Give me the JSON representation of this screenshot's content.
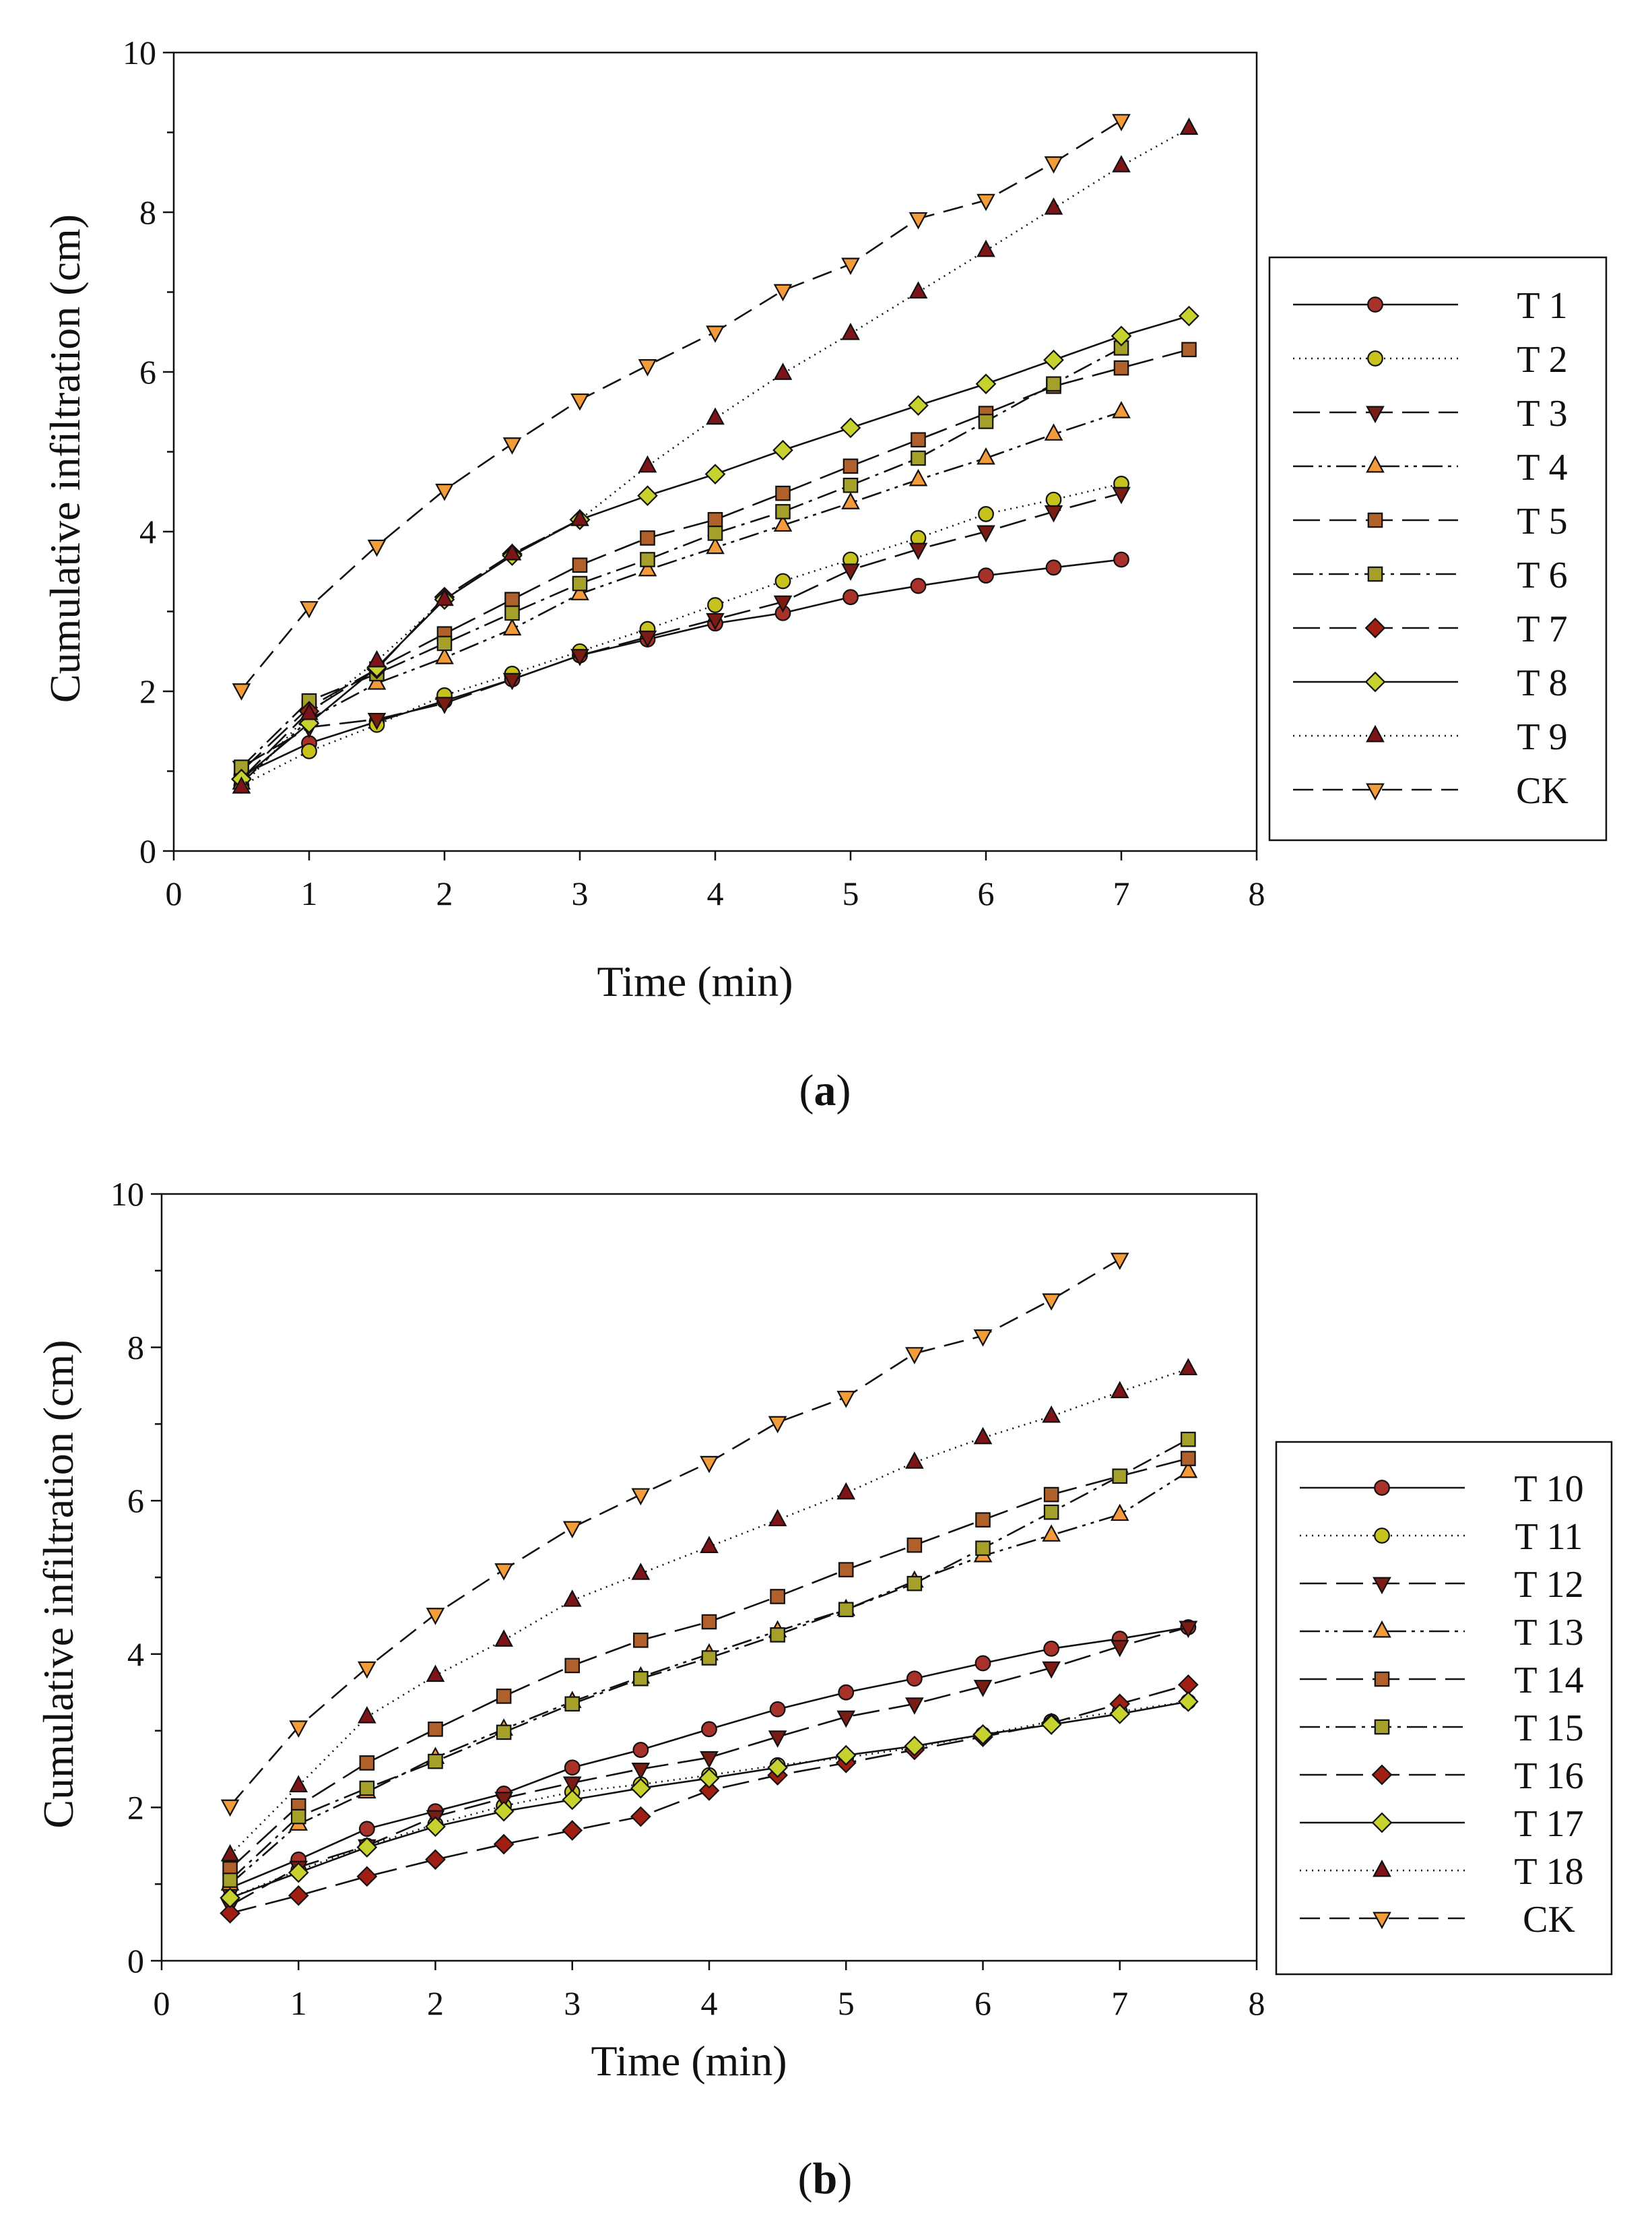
{
  "figure": {
    "panel_labels": [
      "(a)",
      "(b)"
    ]
  },
  "chart_data": [
    {
      "type": "line",
      "panel": "(a)",
      "title": "",
      "xlabel": "Time (min)",
      "ylabel": "Cumulative infiltration (cm)",
      "xlim": [
        0,
        8
      ],
      "ylim": [
        0,
        10
      ],
      "xticks": [
        "0",
        "1",
        "2",
        "3",
        "4",
        "5",
        "6",
        "7",
        "8"
      ],
      "yticks": [
        "0",
        "2",
        "4",
        "6",
        "8",
        "10"
      ],
      "grid": false,
      "legend_position": "right",
      "series": [
        {
          "name": "T 1",
          "marker": "circle",
          "dash": "solid",
          "fill": "#a8312a",
          "x": [
            0.5,
            1,
            1.5,
            2,
            2.5,
            3,
            3.5,
            4,
            4.5,
            5,
            5.5,
            6,
            6.5,
            7
          ],
          "y": [
            0.95,
            1.35,
            1.62,
            1.88,
            2.15,
            2.45,
            2.65,
            2.85,
            2.98,
            3.18,
            3.32,
            3.45,
            3.55,
            3.65
          ]
        },
        {
          "name": "T 2",
          "marker": "circle",
          "dash": "dot",
          "fill": "#c8c21c",
          "x": [
            0.5,
            1,
            1.5,
            2,
            2.5,
            3,
            3.5,
            4,
            4.5,
            5,
            5.5,
            6,
            6.5,
            7
          ],
          "y": [
            0.82,
            1.25,
            1.58,
            1.95,
            2.22,
            2.5,
            2.78,
            3.08,
            3.38,
            3.65,
            3.92,
            4.22,
            4.4,
            4.6
          ]
        },
        {
          "name": "T 3",
          "marker": "triangle-down",
          "dash": "longdash",
          "fill": "#7a1c14",
          "x": [
            0.5,
            1,
            1.5,
            2,
            2.5,
            3,
            3.5,
            4,
            4.5,
            5,
            5.5,
            6,
            6.5,
            7
          ],
          "y": [
            1.05,
            1.55,
            1.65,
            1.85,
            2.15,
            2.45,
            2.68,
            2.9,
            3.12,
            3.52,
            3.78,
            4.0,
            4.25,
            4.48
          ]
        },
        {
          "name": "T 4",
          "marker": "triangle-up",
          "dash": "dashdotdot",
          "fill": "#f29a3c",
          "x": [
            0.5,
            1,
            1.5,
            2,
            2.5,
            3,
            3.5,
            4,
            4.5,
            5,
            5.5,
            6,
            6.5,
            7
          ],
          "y": [
            0.85,
            1.65,
            2.1,
            2.42,
            2.78,
            3.22,
            3.52,
            3.8,
            4.08,
            4.36,
            4.65,
            4.92,
            5.22,
            5.5
          ]
        },
        {
          "name": "T 5",
          "marker": "square",
          "dash": "longdash",
          "fill": "#b0602a",
          "x": [
            0.5,
            1,
            1.5,
            2,
            2.5,
            3,
            3.5,
            4,
            4.5,
            5,
            5.5,
            6,
            6.5,
            7,
            7.5
          ],
          "y": [
            1.0,
            1.8,
            2.28,
            2.72,
            3.15,
            3.58,
            3.92,
            4.15,
            4.48,
            4.82,
            5.15,
            5.48,
            5.82,
            6.05,
            6.28
          ]
        },
        {
          "name": "T 6",
          "marker": "square",
          "dash": "dashdot",
          "fill": "#a4a02a",
          "x": [
            0.5,
            1,
            1.5,
            2,
            2.5,
            3,
            3.5,
            4,
            4.5,
            5,
            5.5,
            6,
            6.5,
            7
          ],
          "y": [
            1.05,
            1.88,
            2.22,
            2.6,
            2.98,
            3.35,
            3.65,
            3.98,
            4.25,
            4.58,
            4.92,
            5.38,
            5.85,
            6.3
          ]
        },
        {
          "name": "T 7",
          "marker": "diamond",
          "dash": "longdash",
          "fill": "#a01e12",
          "x": [
            0.5,
            1,
            1.5,
            2,
            2.5,
            3
          ],
          "y": [
            0.9,
            1.75,
            2.28,
            3.18,
            3.72,
            4.15
          ]
        },
        {
          "name": "T 8",
          "marker": "diamond",
          "dash": "solid",
          "fill": "#c8d22e",
          "x": [
            0.5,
            1,
            1.5,
            2,
            2.5,
            3,
            3.5,
            4,
            4.5,
            5,
            5.5,
            6,
            6.5,
            7,
            7.5
          ],
          "y": [
            0.9,
            1.6,
            2.3,
            3.15,
            3.7,
            4.15,
            4.45,
            4.72,
            5.02,
            5.3,
            5.58,
            5.85,
            6.15,
            6.45,
            6.7
          ]
        },
        {
          "name": "T 9",
          "marker": "triangle-up",
          "dash": "dot",
          "fill": "#7c1418",
          "x": [
            0.5,
            1,
            1.5,
            2,
            2.5,
            3,
            3.5,
            4,
            4.5,
            5,
            5.5,
            6,
            6.5,
            7,
            7.5
          ],
          "y": [
            0.8,
            1.72,
            2.38,
            3.15,
            3.72,
            4.15,
            4.82,
            5.42,
            5.98,
            6.48,
            7.0,
            7.52,
            8.05,
            8.58,
            9.05
          ]
        },
        {
          "name": "CK",
          "marker": "triangle-down",
          "dash": "dash",
          "fill": "#f39c3a",
          "x": [
            0.5,
            1,
            1.5,
            2,
            2.5,
            3,
            3.5,
            4,
            4.5,
            5,
            5.5,
            6,
            6.5,
            7
          ],
          "y": [
            2.02,
            3.05,
            3.82,
            4.52,
            5.1,
            5.65,
            6.08,
            6.5,
            7.02,
            7.35,
            7.92,
            8.15,
            8.62,
            9.15
          ]
        }
      ]
    },
    {
      "type": "line",
      "panel": "(b)",
      "title": "",
      "xlabel": "Time (min)",
      "ylabel": "Cumulative infiltration (cm)",
      "xlim": [
        0,
        8
      ],
      "ylim": [
        0,
        10
      ],
      "xticks": [
        "0",
        "1",
        "2",
        "3",
        "4",
        "5",
        "6",
        "7",
        "8"
      ],
      "yticks": [
        "0",
        "2",
        "4",
        "6",
        "8",
        "10"
      ],
      "grid": false,
      "legend_position": "right",
      "series": [
        {
          "name": "T 10",
          "marker": "circle",
          "dash": "solid",
          "fill": "#a8312a",
          "x": [
            0.5,
            1,
            1.5,
            2,
            2.5,
            3,
            3.5,
            4,
            4.5,
            5,
            5.5,
            6,
            6.5,
            7,
            7.5
          ],
          "y": [
            0.95,
            1.32,
            1.72,
            1.95,
            2.18,
            2.52,
            2.75,
            3.02,
            3.28,
            3.5,
            3.68,
            3.88,
            4.07,
            4.2,
            4.35
          ]
        },
        {
          "name": "T 11",
          "marker": "circle",
          "dash": "dot",
          "fill": "#c8c21c",
          "x": [
            0.5,
            1,
            1.5,
            2,
            2.5,
            3,
            3.5,
            4,
            4.5,
            5,
            5.5,
            6,
            6.5,
            7,
            7.5
          ],
          "y": [
            0.82,
            1.18,
            1.5,
            1.78,
            2.02,
            2.2,
            2.3,
            2.42,
            2.55,
            2.65,
            2.78,
            2.95,
            3.12,
            3.25,
            3.38
          ]
        },
        {
          "name": "T 12",
          "marker": "triangle-down",
          "dash": "longdash",
          "fill": "#7a1c14",
          "x": [
            0.5,
            1,
            1.5,
            2,
            2.5,
            3,
            3.5,
            4,
            4.5,
            5,
            5.5,
            6,
            6.5,
            7,
            7.5
          ],
          "y": [
            0.72,
            1.22,
            1.5,
            1.88,
            2.12,
            2.32,
            2.5,
            2.65,
            2.92,
            3.18,
            3.35,
            3.58,
            3.82,
            4.1,
            4.35
          ]
        },
        {
          "name": "T 13",
          "marker": "triangle-up",
          "dash": "dashdotdot",
          "fill": "#f29a3c",
          "x": [
            0.5,
            1,
            1.5,
            2,
            2.5,
            3,
            3.5,
            4,
            4.5,
            5,
            5.5,
            6,
            6.5,
            7,
            7.5
          ],
          "y": [
            1.0,
            1.78,
            2.2,
            2.65,
            3.02,
            3.38,
            3.7,
            4.0,
            4.3,
            4.58,
            4.95,
            5.28,
            5.55,
            5.82,
            6.38
          ]
        },
        {
          "name": "T 14",
          "marker": "square",
          "dash": "longdash",
          "fill": "#b0602a",
          "x": [
            0.5,
            1,
            1.5,
            2,
            2.5,
            3,
            3.5,
            4,
            4.5,
            5,
            5.5,
            6,
            6.5,
            7,
            7.5
          ],
          "y": [
            1.2,
            2.02,
            2.58,
            3.02,
            3.45,
            3.85,
            4.18,
            4.42,
            4.75,
            5.1,
            5.42,
            5.75,
            6.08,
            6.32,
            6.55
          ]
        },
        {
          "name": "T 15",
          "marker": "square",
          "dash": "dashdot",
          "fill": "#a4a02a",
          "x": [
            0.5,
            1,
            1.5,
            2,
            2.5,
            3,
            3.5,
            4,
            4.5,
            5,
            5.5,
            6,
            6.5,
            7,
            7.5
          ],
          "y": [
            1.05,
            1.88,
            2.25,
            2.6,
            2.98,
            3.35,
            3.68,
            3.95,
            4.25,
            4.58,
            4.92,
            5.38,
            5.85,
            6.32,
            6.8
          ]
        },
        {
          "name": "T 16",
          "marker": "diamond",
          "dash": "longdash",
          "fill": "#a01e12",
          "x": [
            0.5,
            1,
            1.5,
            2,
            2.5,
            3,
            3.5,
            4,
            4.5,
            5,
            5.5,
            6,
            6.5,
            7,
            7.5
          ],
          "y": [
            0.62,
            0.85,
            1.1,
            1.32,
            1.52,
            1.7,
            1.88,
            2.22,
            2.42,
            2.58,
            2.75,
            2.92,
            3.1,
            3.35,
            3.6
          ]
        },
        {
          "name": "T 17",
          "marker": "diamond",
          "dash": "solid",
          "fill": "#c8d22e",
          "x": [
            0.5,
            1,
            1.5,
            2,
            2.5,
            3,
            3.5,
            4,
            4.5,
            5,
            5.5,
            6,
            6.5,
            7,
            7.5
          ],
          "y": [
            0.82,
            1.15,
            1.48,
            1.75,
            1.95,
            2.1,
            2.25,
            2.38,
            2.52,
            2.68,
            2.8,
            2.95,
            3.08,
            3.22,
            3.38
          ]
        },
        {
          "name": "T 18",
          "marker": "triangle-up",
          "dash": "dot",
          "fill": "#7c1418",
          "x": [
            0.5,
            1,
            1.5,
            2,
            2.5,
            3,
            3.5,
            4,
            4.5,
            5,
            5.5,
            6,
            6.5,
            7,
            7.5
          ],
          "y": [
            1.38,
            2.28,
            3.18,
            3.72,
            4.18,
            4.7,
            5.05,
            5.4,
            5.75,
            6.1,
            6.5,
            6.82,
            7.1,
            7.42,
            7.72
          ]
        },
        {
          "name": "CK",
          "marker": "triangle-down",
          "dash": "dash",
          "fill": "#f39c3a",
          "x": [
            0.5,
            1,
            1.5,
            2,
            2.5,
            3,
            3.5,
            4,
            4.5,
            5,
            5.5,
            6,
            6.5,
            7
          ],
          "y": [
            2.02,
            3.05,
            3.82,
            4.52,
            5.1,
            5.65,
            6.08,
            6.5,
            7.02,
            7.35,
            7.92,
            8.15,
            8.62,
            9.15
          ]
        }
      ]
    }
  ]
}
